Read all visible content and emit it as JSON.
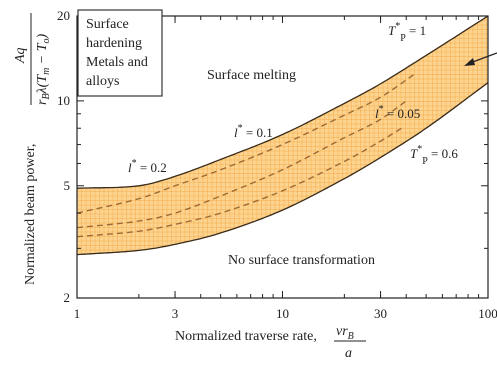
{
  "chart_data": {
    "type": "area",
    "x_scale": "log",
    "y_scale": "log",
    "xlim": [
      1,
      100
    ],
    "ylim": [
      2,
      20
    ],
    "x_ticks": [
      "1",
      "3",
      "10",
      "30",
      "100"
    ],
    "y_ticks": [
      "2",
      "5",
      "10",
      "20"
    ],
    "xlabel": "Normalized traverse rate,",
    "xlabel_formula": {
      "num": "vr",
      "num_sub": "B",
      "den": "a"
    },
    "ylabel": "Normalized beam power,",
    "ylabel_formula": {
      "num": "Aq",
      "den": "r",
      "den_sub": "B",
      "den_rest": "λ(T",
      "den_sub2": "m",
      "den_mid": " − T",
      "den_sub3": "o",
      "den_end": ")"
    },
    "series": [
      {
        "name": "T_P* = 1",
        "role": "upper boundary",
        "style": "solid",
        "x": [
          1,
          2,
          3,
          5,
          10,
          20,
          30,
          50,
          100
        ],
        "y": [
          4.9,
          5.0,
          5.4,
          6.2,
          7.6,
          9.8,
          11.5,
          14.5,
          20
        ]
      },
      {
        "name": "T_P* = 0.6",
        "role": "lower boundary",
        "style": "solid",
        "x": [
          1,
          2,
          3,
          5,
          10,
          20,
          30,
          50,
          100
        ],
        "y": [
          2.85,
          2.95,
          3.1,
          3.4,
          4.1,
          5.3,
          6.3,
          8.0,
          11.6
        ]
      },
      {
        "name": "l* = 0.2",
        "style": "dashed",
        "x": [
          1,
          2,
          3,
          5,
          10,
          20,
          30,
          45
        ],
        "y": [
          4.0,
          4.5,
          5.0,
          5.7,
          7.0,
          8.9,
          10.3,
          12.6
        ]
      },
      {
        "name": "l* = 0.1",
        "style": "dashed",
        "x": [
          1,
          2,
          3,
          5,
          10,
          20,
          30,
          40
        ],
        "y": [
          3.55,
          3.75,
          4.0,
          4.6,
          5.7,
          7.4,
          8.6,
          10.0
        ]
      },
      {
        "name": "l* = 0.05",
        "style": "dashed",
        "x": [
          1,
          2,
          3,
          5,
          10,
          20,
          30,
          38
        ],
        "y": [
          3.3,
          3.45,
          3.65,
          4.0,
          4.8,
          6.1,
          7.2,
          8.0
        ]
      }
    ],
    "labels": {
      "tp1": {
        "pre": "T",
        "sup": "*",
        "sub": "P",
        "post": " = 1"
      },
      "tp06": {
        "pre": "T",
        "sup": "*",
        "sub": "P",
        "post": " = 0.6"
      },
      "l02": {
        "pre": "l",
        "sup": "*",
        "post": " = 0.2"
      },
      "l01": {
        "pre": "l",
        "sup": "*",
        "post": " = 0.1"
      },
      "l005": {
        "pre": "l",
        "sup": "*",
        "post": " = 0.05"
      }
    },
    "regions": {
      "melting": "Surface melting",
      "none": "No surface transformation",
      "hardening": [
        "Surface",
        "hardening",
        "Metals and",
        "alloys"
      ]
    },
    "colors": {
      "band_fill": "#fcd48f",
      "grid": "#f0a13a",
      "boundary": "#3a2a18",
      "dashed": "#a06a35",
      "axis": "#222222"
    }
  }
}
